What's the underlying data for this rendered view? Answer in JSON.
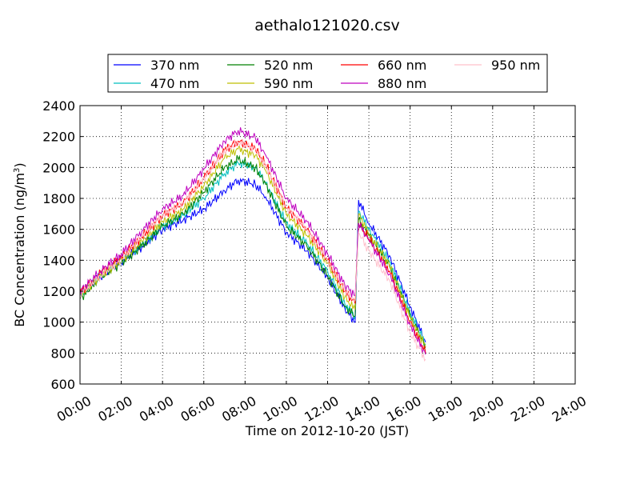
{
  "chart_data": {
    "type": "line",
    "title": "aethalo121020.csv",
    "xlabel": "Time on 2012-10-20 (JST)",
    "ylabel": "BC Concentration (ng/m",
    "ylabel_sup": "3",
    "ylabel_tail": ")",
    "xlim": [
      "00:00",
      "24:00"
    ],
    "ylim": [
      600,
      2400
    ],
    "xticks": [
      "00:00",
      "02:00",
      "04:00",
      "06:00",
      "08:00",
      "10:00",
      "12:00",
      "14:00",
      "16:00",
      "18:00",
      "20:00",
      "22:00",
      "24:00"
    ],
    "yticks": [
      600,
      800,
      1000,
      1200,
      1400,
      1600,
      1800,
      2000,
      2200,
      2400
    ],
    "grid": true,
    "legend": "top-outside",
    "series": [
      {
        "name": "370 nm",
        "color": "#0000ff",
        "x": [
          "00:00",
          "01:00",
          "02:00",
          "03:00",
          "04:00",
          "05:00",
          "06:00",
          "07:00",
          "07:40",
          "08:30",
          "09:00",
          "10:00",
          "11:00",
          "12:00",
          "12:50",
          "13:20",
          "13:30",
          "14:00",
          "15:00",
          "16:00",
          "16:45"
        ],
        "y": [
          1190,
          1300,
          1390,
          1490,
          1600,
          1660,
          1730,
          1850,
          1920,
          1890,
          1810,
          1580,
          1460,
          1290,
          1090,
          1000,
          1790,
          1640,
          1430,
          1100,
          870
        ]
      },
      {
        "name": "470 nm",
        "color": "#00bfbf",
        "x": [
          "00:00",
          "01:00",
          "02:00",
          "03:00",
          "04:00",
          "05:00",
          "06:00",
          "07:00",
          "07:40",
          "08:30",
          "09:00",
          "10:00",
          "11:00",
          "12:00",
          "12:50",
          "13:20",
          "13:30",
          "14:00",
          "15:00",
          "16:00",
          "16:45"
        ],
        "y": [
          1180,
          1300,
          1390,
          1500,
          1620,
          1690,
          1800,
          1960,
          2030,
          2000,
          1900,
          1640,
          1510,
          1330,
          1120,
          1040,
          1720,
          1600,
          1390,
          1060,
          860
        ]
      },
      {
        "name": "520 nm",
        "color": "#008000",
        "x": [
          "00:00",
          "01:00",
          "02:00",
          "03:00",
          "04:00",
          "05:00",
          "06:00",
          "07:00",
          "07:40",
          "08:30",
          "09:00",
          "10:00",
          "11:00",
          "12:00",
          "12:50",
          "13:20",
          "13:30",
          "14:00",
          "15:00",
          "16:00",
          "16:45"
        ],
        "y": [
          1150,
          1290,
          1380,
          1490,
          1620,
          1700,
          1840,
          2000,
          2050,
          2000,
          1890,
          1620,
          1490,
          1300,
          1100,
          1040,
          1660,
          1560,
          1360,
          1040,
          840
        ]
      },
      {
        "name": "590 nm",
        "color": "#bfbf00",
        "x": [
          "00:00",
          "01:00",
          "02:00",
          "03:00",
          "04:00",
          "05:00",
          "06:00",
          "07:00",
          "07:40",
          "08:30",
          "09:00",
          "10:00",
          "11:00",
          "12:00",
          "12:50",
          "13:20",
          "13:30",
          "14:00",
          "15:00",
          "16:00",
          "16:45"
        ],
        "y": [
          1170,
          1300,
          1400,
          1520,
          1650,
          1730,
          1880,
          2060,
          2120,
          2080,
          1980,
          1700,
          1560,
          1380,
          1160,
          1080,
          1700,
          1570,
          1370,
          1030,
          840
        ]
      },
      {
        "name": "660 nm",
        "color": "#ff0000",
        "x": [
          "00:00",
          "01:00",
          "02:00",
          "03:00",
          "04:00",
          "05:00",
          "06:00",
          "07:00",
          "07:40",
          "08:30",
          "09:00",
          "10:00",
          "11:00",
          "12:00",
          "12:50",
          "13:20",
          "13:30",
          "14:00",
          "15:00",
          "16:00",
          "16:45"
        ],
        "y": [
          1190,
          1320,
          1420,
          1550,
          1690,
          1770,
          1930,
          2110,
          2170,
          2120,
          2020,
          1740,
          1600,
          1400,
          1200,
          1120,
          1640,
          1540,
          1330,
          1000,
          800
        ]
      },
      {
        "name": "880 nm",
        "color": "#bf00bf",
        "x": [
          "00:00",
          "01:00",
          "02:00",
          "03:00",
          "04:00",
          "05:00",
          "06:00",
          "07:00",
          "07:40",
          "08:30",
          "09:00",
          "10:00",
          "11:00",
          "12:00",
          "12:50",
          "13:20",
          "13:30",
          "14:00",
          "15:00",
          "16:00",
          "16:45"
        ],
        "y": [
          1200,
          1330,
          1440,
          1590,
          1730,
          1820,
          1990,
          2170,
          2240,
          2190,
          2080,
          1800,
          1650,
          1440,
          1240,
          1170,
          1640,
          1530,
          1310,
          980,
          790
        ]
      },
      {
        "name": "950 nm",
        "color": "#ffc0cb",
        "x": [
          "00:00",
          "01:00",
          "02:00",
          "03:00",
          "04:00",
          "05:00",
          "06:00",
          "07:00",
          "07:40",
          "08:30",
          "09:00",
          "10:00",
          "11:00",
          "12:00",
          "12:50",
          "13:20",
          "13:30",
          "14:00",
          "15:00",
          "16:00",
          "16:45"
        ],
        "y": [
          1180,
          1300,
          1400,
          1560,
          1690,
          1770,
          1930,
          2110,
          2160,
          2120,
          2010,
          1740,
          1600,
          1400,
          1210,
          1140,
          1580,
          1460,
          1270,
          930,
          760
        ]
      }
    ]
  }
}
